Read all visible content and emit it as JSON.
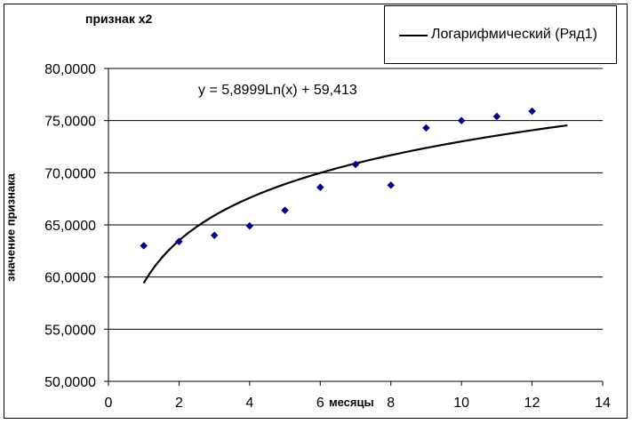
{
  "chart_data": {
    "type": "scatter",
    "title": "признак x2",
    "xlabel": "месяцы",
    "ylabel": "значение признака",
    "xlim": [
      0,
      14
    ],
    "ylim": [
      50,
      80
    ],
    "x_ticks": [
      0,
      2,
      4,
      6,
      8,
      10,
      12,
      14
    ],
    "x_tick_labels": [
      "0",
      "2",
      "4",
      "6",
      "8",
      "10",
      "12",
      "14"
    ],
    "y_ticks": [
      50,
      55,
      60,
      65,
      70,
      75,
      80
    ],
    "y_tick_labels": [
      "50,0000",
      "55,0000",
      "60,0000",
      "65,0000",
      "70,0000",
      "75,0000",
      "80,0000"
    ],
    "grid": "horizontal",
    "legend_position": "top-right",
    "series": [
      {
        "kind": "points",
        "marker": "diamond",
        "color": "#000080",
        "x": [
          1,
          2,
          3,
          4,
          5,
          6,
          7,
          8,
          9,
          10,
          11,
          12
        ],
        "y": [
          63.0,
          63.4,
          64.0,
          64.9,
          66.4,
          68.6,
          70.8,
          68.8,
          74.3,
          75.0,
          75.4,
          75.9
        ]
      },
      {
        "kind": "trendline",
        "name": "Логарифмический (Ряд1)",
        "color": "#000000",
        "a": 5.8999,
        "b": 59.413,
        "x_range": [
          1,
          13
        ]
      }
    ],
    "trend_equation": "y = 5,8999Ln(x) + 59,413"
  }
}
